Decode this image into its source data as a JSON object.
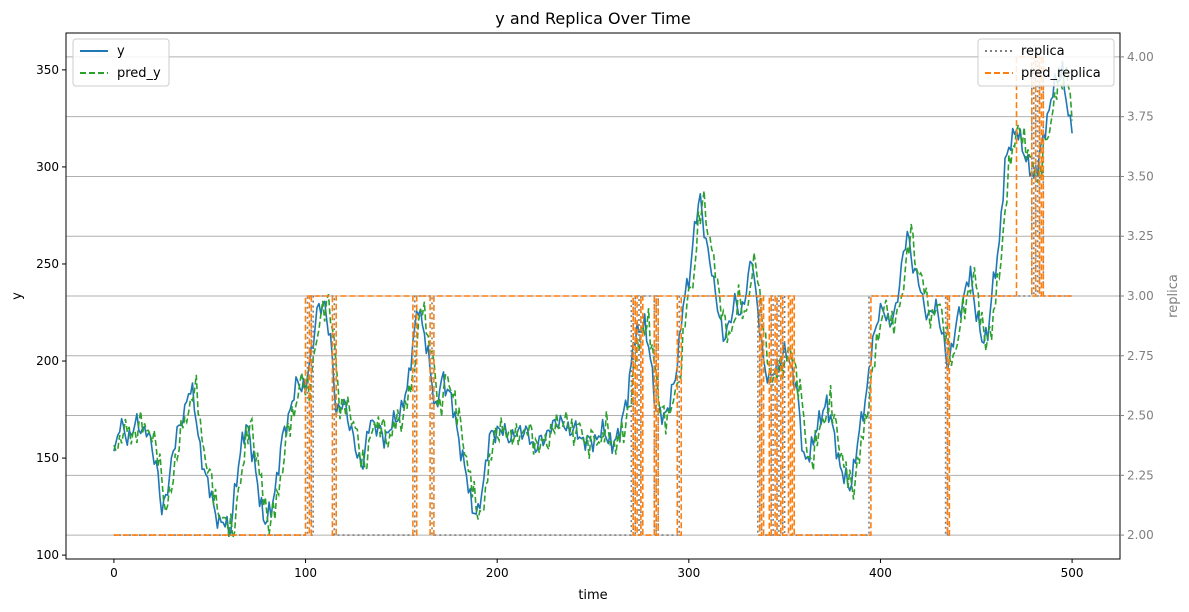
{
  "chart_data": {
    "type": "line",
    "title": "y and Replica Over Time",
    "xlabel": "time",
    "ylabel": "y",
    "y2label": "replica",
    "xlim": [
      -25,
      525
    ],
    "ylim": [
      98,
      369
    ],
    "y2lim": [
      1.9,
      4.1
    ],
    "xticks": [
      0,
      100,
      200,
      300,
      400,
      500
    ],
    "yticks": [
      100,
      150,
      200,
      250,
      300,
      350
    ],
    "y2ticks": [
      2.0,
      2.25,
      2.5,
      2.75,
      3.0,
      3.25,
      3.5,
      3.75,
      4.0
    ],
    "y2tick_labels": [
      "2.00",
      "2.25",
      "2.50",
      "2.75",
      "3.00",
      "3.25",
      "3.50",
      "3.75",
      "4.00"
    ],
    "grid": "horizontal lines at right-axis ticks",
    "legend_left": "upper-left",
    "legend_right": "upper-right",
    "y_keypoints": [
      [
        0,
        152
      ],
      [
        3,
        168
      ],
      [
        7,
        160
      ],
      [
        12,
        168
      ],
      [
        15,
        165
      ],
      [
        18,
        162
      ],
      [
        22,
        148
      ],
      [
        25,
        122
      ],
      [
        29,
        140
      ],
      [
        33,
        165
      ],
      [
        37,
        172
      ],
      [
        39,
        186
      ],
      [
        41,
        185
      ],
      [
        44,
        160
      ],
      [
        48,
        140
      ],
      [
        51,
        130
      ],
      [
        55,
        115
      ],
      [
        58,
        118
      ],
      [
        61,
        112
      ],
      [
        64,
        140
      ],
      [
        67,
        160
      ],
      [
        70,
        165
      ],
      [
        73,
        150
      ],
      [
        76,
        128
      ],
      [
        79,
        118
      ],
      [
        82,
        122
      ],
      [
        85,
        140
      ],
      [
        88,
        160
      ],
      [
        92,
        175
      ],
      [
        96,
        190
      ],
      [
        100,
        185
      ],
      [
        103,
        205
      ],
      [
        106,
        225
      ],
      [
        110,
        230
      ],
      [
        113,
        210
      ],
      [
        116,
        175
      ],
      [
        120,
        178
      ],
      [
        124,
        165
      ],
      [
        127,
        150
      ],
      [
        130,
        148
      ],
      [
        134,
        170
      ],
      [
        138,
        165
      ],
      [
        141,
        160
      ],
      [
        144,
        165
      ],
      [
        147,
        170
      ],
      [
        150,
        175
      ],
      [
        153,
        185
      ],
      [
        156,
        210
      ],
      [
        159,
        228
      ],
      [
        162,
        215
      ],
      [
        165,
        195
      ],
      [
        168,
        175
      ],
      [
        171,
        190
      ],
      [
        175,
        185
      ],
      [
        178,
        170
      ],
      [
        181,
        155
      ],
      [
        184,
        140
      ],
      [
        187,
        125
      ],
      [
        190,
        120
      ],
      [
        193,
        140
      ],
      [
        196,
        160
      ],
      [
        200,
        165
      ],
      [
        204,
        163
      ],
      [
        208,
        160
      ],
      [
        212,
        165
      ],
      [
        216,
        162
      ],
      [
        220,
        155
      ],
      [
        224,
        160
      ],
      [
        228,
        165
      ],
      [
        232,
        170
      ],
      [
        236,
        165
      ],
      [
        240,
        165
      ],
      [
        244,
        160
      ],
      [
        248,
        158
      ],
      [
        252,
        160
      ],
      [
        256,
        165
      ],
      [
        260,
        155
      ],
      [
        264,
        165
      ],
      [
        268,
        180
      ],
      [
        271,
        210
      ],
      [
        274,
        215
      ],
      [
        277,
        220
      ],
      [
        280,
        200
      ],
      [
        283,
        175
      ],
      [
        287,
        170
      ],
      [
        290,
        180
      ],
      [
        293,
        190
      ],
      [
        297,
        230
      ],
      [
        300,
        240
      ],
      [
        303,
        270
      ],
      [
        306,
        283
      ],
      [
        309,
        262
      ],
      [
        312,
        245
      ],
      [
        315,
        230
      ],
      [
        318,
        210
      ],
      [
        321,
        220
      ],
      [
        324,
        230
      ],
      [
        327,
        225
      ],
      [
        330,
        235
      ],
      [
        333,
        255
      ],
      [
        336,
        225
      ],
      [
        339,
        200
      ],
      [
        342,
        190
      ],
      [
        345,
        195
      ],
      [
        348,
        200
      ],
      [
        351,
        205
      ],
      [
        354,
        195
      ],
      [
        357,
        180
      ],
      [
        360,
        150
      ],
      [
        363,
        150
      ],
      [
        366,
        165
      ],
      [
        369,
        170
      ],
      [
        372,
        180
      ],
      [
        375,
        165
      ],
      [
        378,
        150
      ],
      [
        381,
        140
      ],
      [
        384,
        135
      ],
      [
        387,
        150
      ],
      [
        390,
        170
      ],
      [
        393,
        185
      ],
      [
        396,
        210
      ],
      [
        399,
        225
      ],
      [
        402,
        225
      ],
      [
        405,
        220
      ],
      [
        408,
        225
      ],
      [
        411,
        250
      ],
      [
        414,
        265
      ],
      [
        417,
        250
      ],
      [
        420,
        240
      ],
      [
        423,
        228
      ],
      [
        426,
        222
      ],
      [
        429,
        230
      ],
      [
        432,
        215
      ],
      [
        435,
        198
      ],
      [
        438,
        210
      ],
      [
        441,
        225
      ],
      [
        444,
        235
      ],
      [
        447,
        245
      ],
      [
        450,
        225
      ],
      [
        453,
        210
      ],
      [
        456,
        215
      ],
      [
        459,
        240
      ],
      [
        462,
        262
      ],
      [
        465,
        300
      ],
      [
        468,
        315
      ],
      [
        471,
        318
      ],
      [
        474,
        312
      ],
      [
        477,
        300
      ],
      [
        480,
        295
      ],
      [
        483,
        305
      ],
      [
        486,
        320
      ],
      [
        489,
        335
      ],
      [
        492,
        345
      ],
      [
        495,
        350
      ],
      [
        498,
        325
      ],
      [
        500,
        323
      ]
    ],
    "pred_y_lag": 2,
    "pred_y_noise": 5,
    "replica_segments": [
      [
        0,
        2
      ],
      [
        101,
        3
      ],
      [
        103,
        2
      ],
      [
        104,
        3
      ],
      [
        115,
        2
      ],
      [
        157,
        3
      ],
      [
        166,
        2
      ],
      [
        270,
        3
      ],
      [
        271,
        2
      ],
      [
        272,
        3
      ],
      [
        274,
        2
      ],
      [
        275,
        3
      ],
      [
        282,
        2
      ],
      [
        283,
        3
      ],
      [
        284,
        2
      ],
      [
        295,
        3
      ],
      [
        336,
        2
      ],
      [
        337,
        3
      ],
      [
        338,
        2
      ],
      [
        343,
        3
      ],
      [
        344,
        2
      ],
      [
        346,
        3
      ],
      [
        347,
        2
      ],
      [
        349,
        3
      ],
      [
        350,
        2
      ],
      [
        394,
        3
      ],
      [
        434,
        2
      ],
      [
        435,
        3
      ],
      [
        479,
        4
      ],
      [
        480,
        3
      ],
      [
        481,
        4
      ],
      [
        482,
        3
      ],
      [
        483,
        4
      ],
      [
        485,
        3
      ],
      [
        500,
        3
      ]
    ],
    "pred_replica_segments": [
      [
        0,
        2
      ],
      [
        100,
        3
      ],
      [
        102,
        2
      ],
      [
        103,
        3
      ],
      [
        114,
        2
      ],
      [
        116,
        3
      ],
      [
        156,
        2
      ],
      [
        158,
        3
      ],
      [
        165,
        2
      ],
      [
        167,
        3
      ],
      [
        271,
        2
      ],
      [
        272,
        3
      ],
      [
        273,
        2
      ],
      [
        275,
        3
      ],
      [
        276,
        2
      ],
      [
        282,
        3
      ],
      [
        283,
        2
      ],
      [
        284,
        3
      ],
      [
        294,
        2
      ],
      [
        296,
        3
      ],
      [
        337,
        2
      ],
      [
        338,
        3
      ],
      [
        339,
        2
      ],
      [
        342,
        3
      ],
      [
        343,
        2
      ],
      [
        345,
        3
      ],
      [
        346,
        2
      ],
      [
        348,
        3
      ],
      [
        349,
        2
      ],
      [
        352,
        3
      ],
      [
        353,
        2
      ],
      [
        354,
        3
      ],
      [
        355,
        2
      ],
      [
        395,
        3
      ],
      [
        435,
        2
      ],
      [
        436,
        3
      ],
      [
        471,
        4
      ],
      [
        479,
        3
      ],
      [
        481,
        4
      ],
      [
        483,
        3
      ],
      [
        484,
        4
      ],
      [
        485,
        3
      ],
      [
        500,
        3
      ]
    ],
    "series": [
      {
        "name": "y",
        "color": "#1f77b4",
        "style": "solid",
        "axis": "left"
      },
      {
        "name": "pred_y",
        "color": "#2ca02c",
        "style": "dashed",
        "axis": "left"
      },
      {
        "name": "replica",
        "color": "#808080",
        "style": "dotted",
        "axis": "right"
      },
      {
        "name": "pred_replica",
        "color": "#ff7f0e",
        "style": "dashed",
        "axis": "right"
      }
    ]
  }
}
